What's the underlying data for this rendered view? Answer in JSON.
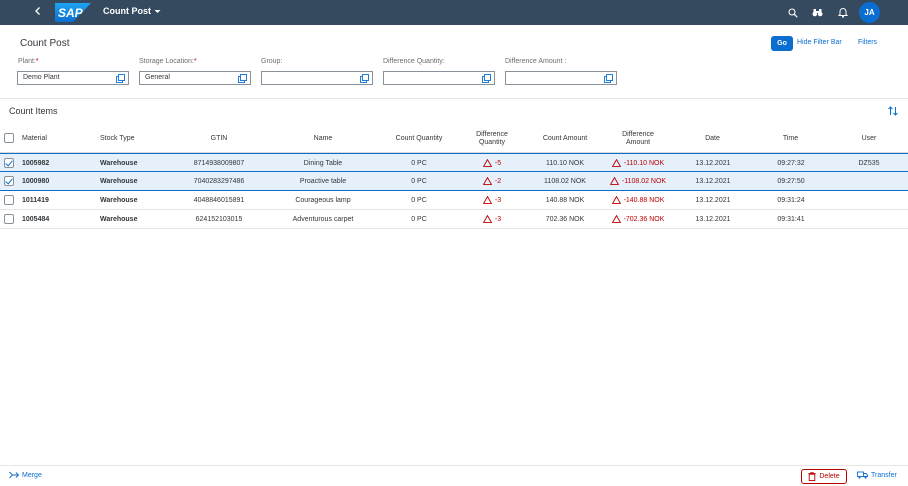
{
  "shell": {
    "logo_text": "SAP",
    "app_title": "Count Post",
    "avatar_initials": "JA",
    "icons": [
      "back-icon",
      "search-icon",
      "binoculars-icon",
      "bell-icon"
    ]
  },
  "header": {
    "title": "Count Post",
    "go_label": "Go",
    "hide_filter_label": "Hide Filter Bar",
    "filters_label": "Filters"
  },
  "filters": {
    "plant": {
      "label": "Plant:",
      "required": "*",
      "value": "Demo Plant"
    },
    "storage_location": {
      "label": "Storage Location:",
      "required": "*",
      "value": "General"
    },
    "group": {
      "label": "Group:",
      "value": ""
    },
    "difference_quantity": {
      "label": "Difference Quantity:",
      "value": ""
    },
    "difference_amount": {
      "label": "Difference Amount :",
      "value": ""
    }
  },
  "table": {
    "title": "Count Items",
    "columns": {
      "material": "Material",
      "stock_type": "Stock Type",
      "gtin": "GTIN",
      "name": "Name",
      "count_quantity": "Count Quantity",
      "difference_quantity_1": "Difference",
      "difference_quantity_2": "Quantity",
      "count_amount": "Count Amount",
      "difference_amount_1": "Difference",
      "difference_amount_2": "Amount",
      "date": "Date",
      "time": "Time",
      "user": "User"
    },
    "rows": [
      {
        "selected": true,
        "material": "1005982",
        "stock_type": "Warehouse",
        "gtin": "8714938009807",
        "name": "Dining Table",
        "count_quantity": "0 PC",
        "difference_quantity": "-5",
        "count_amount": "110.10 NOK",
        "difference_amount": "-110.10 NOK",
        "date": "13.12.2021",
        "time": "09:27:32",
        "user": "DZ535"
      },
      {
        "selected": true,
        "material": "1000980",
        "stock_type": "Warehouse",
        "gtin": "7040283297486",
        "name": "Proactive table",
        "count_quantity": "0 PC",
        "difference_quantity": "-2",
        "count_amount": "1108.02 NOK",
        "difference_amount": "-1108.02 NOK",
        "date": "13.12.2021",
        "time": "09:27:50",
        "user": ""
      },
      {
        "selected": false,
        "material": "1011419",
        "stock_type": "Warehouse",
        "gtin": "4048846015891",
        "name": "Courageous lamp",
        "count_quantity": "0 PC",
        "difference_quantity": "-3",
        "count_amount": "140.88 NOK",
        "difference_amount": "-140.88 NOK",
        "date": "13.12.2021",
        "time": "09:31:24",
        "user": ""
      },
      {
        "selected": false,
        "material": "1005484",
        "stock_type": "Warehouse",
        "gtin": "624152103015",
        "name": "Adventurous carpet",
        "count_quantity": "0 PC",
        "difference_quantity": "-3",
        "count_amount": "702.36 NOK",
        "difference_amount": "-702.36 NOK",
        "date": "13.12.2021",
        "time": "09:31:41",
        "user": ""
      }
    ]
  },
  "footer": {
    "merge_label": "Merge",
    "delete_label": "Delete",
    "transfer_label": "Transfer"
  },
  "colors": {
    "shell": "#354a5f",
    "accent": "#0a6ed1",
    "negative": "#bb0000",
    "selected_row": "#e5f0fa"
  }
}
